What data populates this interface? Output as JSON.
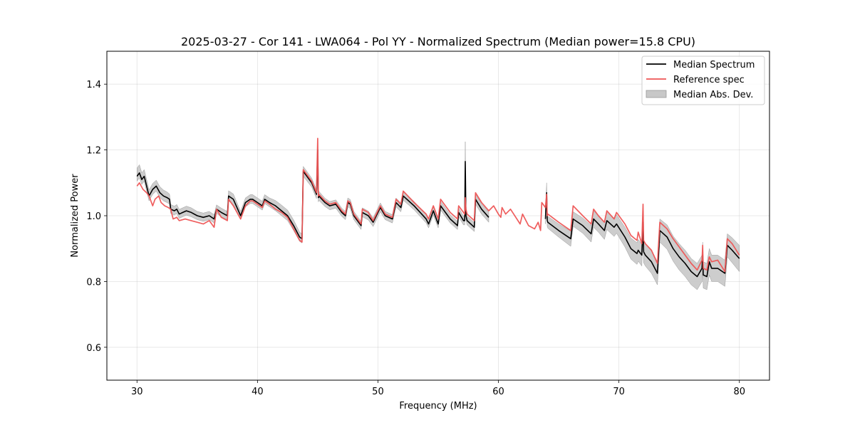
{
  "chart_data": {
    "type": "line",
    "title": "2025-03-27 - Cor 141 - LWA064 - Pol YY - Normalized Spectrum (Median power=15.8 CPU)",
    "xlabel": "Frequency (MHz)",
    "ylabel": "Normalized Power",
    "xlim": [
      27.5,
      82.5
    ],
    "ylim": [
      0.5,
      1.5
    ],
    "xticks": [
      30,
      40,
      50,
      60,
      70,
      80
    ],
    "yticks": [
      0.6,
      0.8,
      1.0,
      1.2,
      1.4
    ],
    "xtick_labels": [
      "30",
      "40",
      "50",
      "60",
      "70",
      "80"
    ],
    "ytick_labels": [
      "0.6",
      "0.8",
      "1.0",
      "1.2",
      "1.4"
    ],
    "grid": true,
    "legend_position": "top-right",
    "legend": [
      "Median Spectrum",
      "Reference spec",
      "Median Abs. Dev."
    ],
    "colors": {
      "median": "#000000",
      "reference": "#ee5555",
      "mad": "#c8c8c8",
      "mad_edge": "#999999"
    },
    "series": [
      {
        "name": "Median Spectrum",
        "x": [
          30.0,
          30.2,
          30.4,
          30.6,
          30.8,
          31.0,
          31.3,
          31.6,
          31.9,
          32.2,
          32.5,
          32.7,
          32.8,
          33.1,
          33.3,
          33.5,
          33.8,
          34.1,
          34.5,
          35.0,
          35.5,
          36.0,
          36.4,
          36.6,
          37.0,
          37.5,
          37.6,
          38.0,
          38.6,
          39.0,
          39.4,
          39.6,
          40.0,
          40.4,
          40.6,
          41.0,
          41.5,
          42.0,
          42.5,
          43.0,
          43.5,
          43.7,
          43.8,
          44.5,
          44.9,
          45.0,
          45.05,
          45.1,
          45.6,
          46.0,
          46.5,
          47.0,
          47.3,
          47.5,
          47.7,
          48.0,
          48.6,
          48.7,
          49.2,
          49.6,
          50.2,
          50.6,
          51.2,
          51.5,
          51.9,
          52.1,
          53.0,
          54.0,
          54.2,
          54.6,
          55.0,
          55.2,
          56.0,
          56.6,
          56.7,
          57.1,
          57.2,
          57.25,
          57.3,
          57.4,
          58.0,
          58.1,
          58.6,
          59.2
        ],
        "values": [
          1.12,
          1.13,
          1.11,
          1.12,
          1.09,
          1.06,
          1.08,
          1.09,
          1.07,
          1.06,
          1.055,
          1.05,
          1.02,
          1.015,
          1.02,
          1.005,
          1.01,
          1.015,
          1.01,
          1.0,
          0.995,
          1.0,
          0.99,
          1.02,
          1.01,
          1.0,
          1.06,
          1.05,
          1.0,
          1.04,
          1.05,
          1.05,
          1.04,
          1.03,
          1.05,
          1.04,
          1.03,
          1.015,
          1.0,
          0.97,
          0.935,
          0.93,
          1.135,
          1.1,
          1.065,
          1.2,
          1.055,
          1.06,
          1.04,
          1.03,
          1.035,
          1.01,
          1.0,
          1.04,
          1.035,
          1.0,
          0.97,
          1.01,
          1.0,
          0.98,
          1.025,
          1.0,
          0.99,
          1.04,
          1.025,
          1.06,
          1.03,
          0.99,
          0.975,
          1.015,
          0.975,
          1.03,
          0.99,
          0.97,
          1.01,
          0.985,
          0.985,
          1.165,
          1.0,
          0.985,
          0.965,
          1.05,
          1.02,
          0.995
        ]
      },
      {
        "name": "Median Spectrum",
        "x": [
          63.9,
          64.0,
          64.05,
          64.1,
          65.0,
          66.0,
          66.2,
          67.0,
          67.7,
          67.9,
          68.3,
          68.8,
          69.0,
          69.6,
          69.8,
          70.5,
          71.0,
          71.5,
          71.6,
          71.9,
          72.0,
          72.05,
          72.2,
          72.7,
          73.2,
          73.4,
          74.0,
          74.5,
          75.0,
          75.5,
          76.0,
          76.5,
          76.9,
          76.95,
          77.0,
          77.3,
          77.5,
          77.7,
          78.2,
          78.8,
          79.0,
          79.4,
          80.0
        ],
        "values": [
          0.99,
          1.07,
          0.985,
          0.98,
          0.955,
          0.93,
          0.99,
          0.97,
          0.945,
          0.99,
          0.975,
          0.955,
          0.985,
          0.965,
          0.975,
          0.935,
          0.9,
          0.885,
          0.895,
          0.88,
          0.98,
          0.89,
          0.88,
          0.86,
          0.825,
          0.955,
          0.935,
          0.9,
          0.875,
          0.855,
          0.83,
          0.815,
          0.84,
          0.88,
          0.82,
          0.815,
          0.86,
          0.84,
          0.84,
          0.825,
          0.91,
          0.895,
          0.87
        ]
      },
      {
        "name": "Reference spec",
        "x": [
          30.0,
          30.2,
          30.5,
          30.8,
          31.0,
          31.3,
          31.5,
          31.8,
          32.0,
          32.3,
          32.6,
          32.8,
          33.0,
          33.3,
          33.5,
          34.0,
          34.5,
          35.0,
          35.5,
          36.0,
          36.4,
          36.6,
          37.0,
          37.5,
          37.6,
          38.0,
          38.6,
          39.0,
          39.4,
          39.6,
          40.0,
          40.4,
          40.6,
          41.0,
          41.5,
          42.0,
          42.5,
          43.0,
          43.5,
          43.7,
          43.8,
          44.5,
          44.9,
          45.0,
          45.05,
          45.1,
          45.6,
          46.0,
          46.5,
          47.0,
          47.3,
          47.5,
          47.7,
          48.0,
          48.6,
          48.7,
          49.2,
          49.6,
          50.2,
          50.6,
          51.2,
          51.5,
          51.9,
          52.1,
          53.0,
          54.0,
          54.2,
          54.6,
          55.0,
          55.2,
          56.0,
          56.6,
          56.7,
          57.1,
          57.2,
          57.25,
          57.3,
          57.4,
          58.0,
          58.1,
          58.6,
          59.2,
          59.6,
          60.0,
          60.2,
          60.3,
          60.6,
          61.0,
          61.8,
          62.0,
          62.5,
          63.0,
          63.3,
          63.5,
          63.6,
          63.9,
          64.0,
          64.05,
          64.1,
          65.0,
          66.0,
          66.2,
          67.0,
          67.7,
          67.9,
          68.3,
          68.8,
          69.0,
          69.6,
          69.8,
          70.5,
          71.0,
          71.5,
          71.6,
          71.9,
          72.0,
          72.05,
          72.2,
          72.7,
          73.2,
          73.4,
          74.0,
          74.5,
          75.0,
          75.5,
          76.0,
          76.5,
          76.9,
          76.95,
          77.0,
          77.3,
          77.5,
          77.7,
          78.2,
          78.8,
          79.0,
          79.4,
          80.0
        ],
        "values": [
          1.09,
          1.1,
          1.08,
          1.07,
          1.06,
          1.03,
          1.05,
          1.06,
          1.04,
          1.03,
          1.025,
          1.02,
          0.99,
          0.995,
          0.985,
          0.99,
          0.985,
          0.98,
          0.975,
          0.985,
          0.965,
          1.02,
          0.995,
          0.985,
          1.05,
          1.03,
          0.99,
          1.03,
          1.045,
          1.045,
          1.035,
          1.025,
          1.045,
          1.035,
          1.02,
          1.01,
          0.995,
          0.96,
          0.925,
          0.92,
          1.14,
          1.105,
          1.07,
          1.235,
          1.06,
          1.065,
          1.045,
          1.035,
          1.04,
          1.015,
          1.005,
          1.045,
          1.04,
          1.005,
          0.975,
          1.02,
          1.01,
          0.985,
          1.03,
          1.005,
          0.995,
          1.05,
          1.035,
          1.075,
          1.04,
          1.005,
          0.99,
          1.03,
          0.99,
          1.05,
          1.01,
          0.99,
          1.03,
          1.01,
          1.005,
          1.055,
          1.02,
          1.005,
          0.985,
          1.07,
          1.04,
          1.015,
          1.03,
          1.005,
          0.995,
          1.025,
          1.005,
          1.02,
          0.975,
          1.005,
          0.97,
          0.96,
          0.98,
          0.955,
          1.04,
          1.025,
          1.065,
          1.0,
          1.005,
          0.98,
          0.955,
          1.03,
          1.0,
          0.975,
          1.02,
          1.0,
          0.98,
          1.015,
          0.99,
          1.01,
          0.975,
          0.94,
          0.925,
          0.95,
          0.915,
          1.035,
          0.925,
          0.915,
          0.895,
          0.855,
          0.98,
          0.96,
          0.93,
          0.905,
          0.88,
          0.855,
          0.835,
          0.865,
          0.91,
          0.84,
          0.835,
          0.875,
          0.86,
          0.865,
          0.83,
          0.93,
          0.915,
          0.88
        ]
      }
    ],
    "mad_band": [
      {
        "x": [
          30.0,
          30.2,
          30.4,
          30.6,
          30.8,
          31.0,
          31.3,
          31.6,
          31.9,
          32.2,
          32.5,
          32.7,
          32.8,
          33.1,
          33.3,
          33.5,
          33.8,
          34.1,
          34.5,
          35.0,
          35.5,
          36.0,
          36.4,
          36.6,
          37.0,
          37.5,
          37.6,
          38.0,
          38.6,
          39.0,
          39.4,
          39.6,
          40.0,
          40.4,
          40.6,
          41.0,
          41.5,
          42.0,
          42.5,
          43.0,
          43.5,
          43.7,
          43.8,
          44.5,
          44.9,
          45.0,
          45.05,
          45.1,
          45.6,
          46.0,
          46.5,
          47.0,
          47.3,
          47.5,
          47.7,
          48.0,
          48.6,
          48.7,
          49.2,
          49.6,
          50.2,
          50.6,
          51.2,
          51.5,
          51.9,
          52.1,
          53.0,
          54.0,
          54.2,
          54.6,
          55.0,
          55.2,
          56.0,
          56.6,
          56.7,
          57.1,
          57.2,
          57.25,
          57.3,
          57.4,
          58.0,
          58.1,
          58.6,
          59.2
        ],
        "lower": [
          1.105,
          1.115,
          1.095,
          1.105,
          1.075,
          1.045,
          1.065,
          1.075,
          1.055,
          1.045,
          1.04,
          1.035,
          1.007,
          1.002,
          1.007,
          0.992,
          0.997,
          1.002,
          0.997,
          0.988,
          0.983,
          0.988,
          0.978,
          1.007,
          0.997,
          0.988,
          1.045,
          1.035,
          0.988,
          1.027,
          1.037,
          1.037,
          1.027,
          1.017,
          1.037,
          1.027,
          1.015,
          1.0,
          0.985,
          0.955,
          0.922,
          0.917,
          1.12,
          1.087,
          1.052,
          1.12,
          1.042,
          1.047,
          1.028,
          1.018,
          1.023,
          0.998,
          0.988,
          1.027,
          1.022,
          0.988,
          0.958,
          0.997,
          0.987,
          0.967,
          1.012,
          0.988,
          0.978,
          1.027,
          1.012,
          1.047,
          1.018,
          0.978,
          0.963,
          1.002,
          0.963,
          1.017,
          0.978,
          0.958,
          0.997,
          0.972,
          0.972,
          1.12,
          0.987,
          0.972,
          0.952,
          1.035,
          1.005,
          0.98
        ],
        "upper": [
          1.145,
          1.155,
          1.13,
          1.14,
          1.11,
          1.078,
          1.098,
          1.108,
          1.088,
          1.078,
          1.072,
          1.066,
          1.034,
          1.029,
          1.034,
          1.019,
          1.024,
          1.029,
          1.024,
          1.013,
          1.008,
          1.013,
          1.003,
          1.033,
          1.023,
          1.013,
          1.076,
          1.066,
          1.013,
          1.054,
          1.064,
          1.064,
          1.054,
          1.044,
          1.064,
          1.054,
          1.046,
          1.032,
          1.017,
          0.987,
          0.95,
          0.945,
          1.15,
          1.114,
          1.079,
          1.21,
          1.069,
          1.074,
          1.053,
          1.043,
          1.048,
          1.023,
          1.013,
          1.054,
          1.049,
          1.013,
          0.983,
          1.024,
          1.014,
          0.994,
          1.039,
          1.013,
          1.003,
          1.054,
          1.039,
          1.074,
          1.043,
          1.003,
          0.988,
          1.029,
          0.988,
          1.044,
          1.003,
          0.983,
          1.024,
          0.999,
          0.999,
          1.225,
          1.014,
          0.999,
          0.979,
          1.066,
          1.036,
          1.011
        ]
      },
      {
        "x": [
          63.9,
          64.0,
          64.05,
          64.1,
          65.0,
          66.0,
          66.2,
          67.0,
          67.7,
          67.9,
          68.3,
          68.8,
          69.0,
          69.6,
          69.8,
          70.5,
          71.0,
          71.5,
          71.6,
          71.9,
          72.0,
          72.05,
          72.2,
          72.7,
          73.2,
          73.4,
          74.0,
          74.5,
          75.0,
          75.5,
          76.0,
          76.5,
          76.9,
          76.95,
          77.0,
          77.3,
          77.5,
          77.7,
          78.2,
          78.8,
          79.0,
          79.4,
          80.0
        ],
        "lower": [
          0.975,
          1.05,
          0.968,
          0.962,
          0.935,
          0.907,
          0.968,
          0.947,
          0.92,
          0.965,
          0.95,
          0.928,
          0.958,
          0.937,
          0.947,
          0.905,
          0.868,
          0.852,
          0.862,
          0.847,
          0.945,
          0.857,
          0.847,
          0.825,
          0.79,
          0.92,
          0.898,
          0.862,
          0.835,
          0.815,
          0.79,
          0.775,
          0.8,
          0.84,
          0.78,
          0.775,
          0.82,
          0.8,
          0.8,
          0.785,
          0.875,
          0.857,
          0.83
        ],
        "upper": [
          1.005,
          1.1,
          1.002,
          0.998,
          0.975,
          0.953,
          1.012,
          0.993,
          0.97,
          1.015,
          1.0,
          0.982,
          1.012,
          0.993,
          1.003,
          0.965,
          0.932,
          0.918,
          0.928,
          0.913,
          1.015,
          0.923,
          0.913,
          0.895,
          0.86,
          0.99,
          0.972,
          0.938,
          0.915,
          0.895,
          0.87,
          0.855,
          0.88,
          0.92,
          0.86,
          0.855,
          0.9,
          0.88,
          0.88,
          0.865,
          0.945,
          0.933,
          0.91
        ]
      }
    ]
  }
}
